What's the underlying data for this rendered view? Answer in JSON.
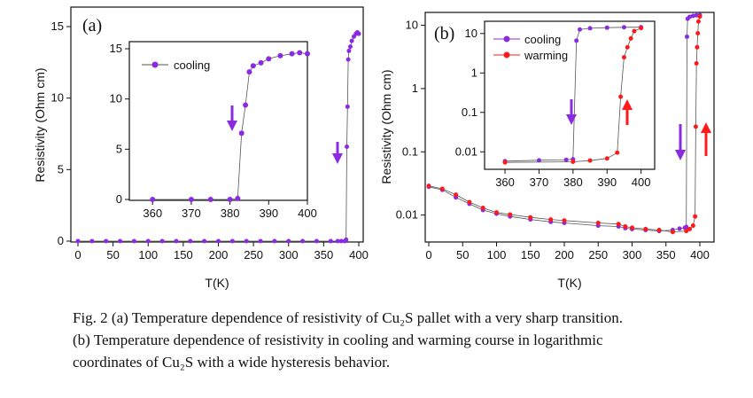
{
  "chart_data": [
    {
      "id": "a",
      "type": "scatter",
      "panel_label": "(a)",
      "xlabel": "T(K)",
      "ylabel": "Resistivity (Ohm cm)",
      "xlim": [
        0,
        400
      ],
      "ylim": [
        0,
        15
      ],
      "yscale": "linear",
      "xticks": [
        0,
        50,
        100,
        150,
        200,
        250,
        300,
        350,
        400
      ],
      "yticks": [
        0,
        5,
        10,
        15
      ],
      "grid": false,
      "series": [
        {
          "name": "cooling",
          "color": "#8a2be2",
          "x": [
            0,
            20,
            40,
            60,
            80,
            100,
            120,
            140,
            160,
            180,
            200,
            220,
            240,
            260,
            280,
            300,
            320,
            340,
            360,
            370,
            375,
            380,
            382,
            383,
            384,
            385,
            386,
            388,
            390,
            393,
            396,
            398,
            400
          ],
          "y": [
            0,
            0,
            0,
            0,
            0,
            0,
            0,
            0,
            0,
            0,
            0,
            0,
            0,
            0,
            0,
            0,
            0,
            0,
            0,
            0,
            0,
            0,
            0.1,
            6.6,
            9.4,
            12.7,
            13.3,
            13.6,
            14.0,
            14.3,
            14.5,
            14.6,
            14.5
          ]
        }
      ],
      "annotations": [
        {
          "type": "arrow",
          "direction": "down",
          "color": "#8a2be2",
          "near": "cooling transition"
        }
      ],
      "inset": {
        "xlim": [
          354,
          400
        ],
        "ylim": [
          0,
          15
        ],
        "xticks": [
          360,
          370,
          380,
          390,
          400
        ],
        "yticks": [
          0,
          5,
          10,
          15
        ],
        "legend": [
          "cooling"
        ],
        "legend_position": "top-left"
      }
    },
    {
      "id": "b",
      "type": "scatter",
      "panel_label": "(b)",
      "xlabel": "T(K)",
      "ylabel": "Resistivity (Ohm cm)",
      "xlim": [
        0,
        400
      ],
      "ylim": [
        0.004,
        15
      ],
      "yscale": "log",
      "xticks": [
        0,
        50,
        100,
        150,
        200,
        250,
        300,
        350,
        400
      ],
      "yticks": [
        0.01,
        0.1,
        1,
        10
      ],
      "ytick_labels": [
        "0.01",
        "0.1",
        "1",
        "10"
      ],
      "grid": false,
      "series": [
        {
          "name": "cooling",
          "color": "#8a2be2",
          "x": [
            0,
            20,
            40,
            60,
            80,
            100,
            120,
            150,
            180,
            200,
            250,
            280,
            290,
            300,
            320,
            340,
            360,
            370,
            378,
            380,
            381,
            382,
            385,
            390,
            395,
            400
          ],
          "y": [
            0.028,
            0.025,
            0.019,
            0.015,
            0.012,
            0.0105,
            0.0095,
            0.0085,
            0.0078,
            0.0075,
            0.0068,
            0.0066,
            0.0062,
            0.006,
            0.0058,
            0.0056,
            0.0058,
            0.0061,
            0.0063,
            0.0065,
            6.6,
            12.7,
            13.6,
            14.1,
            14.4,
            14.5
          ]
        },
        {
          "name": "warming",
          "color": "#ff1a1a",
          "x": [
            0,
            20,
            40,
            60,
            80,
            100,
            120,
            150,
            180,
            200,
            250,
            280,
            290,
            300,
            320,
            340,
            360,
            380,
            385,
            390,
            393,
            394,
            395,
            396,
            397,
            398,
            400
          ],
          "y": [
            0.029,
            0.026,
            0.021,
            0.016,
            0.013,
            0.011,
            0.0102,
            0.0092,
            0.0085,
            0.0082,
            0.0075,
            0.0072,
            0.0066,
            0.0063,
            0.006,
            0.0058,
            0.0054,
            0.0056,
            0.006,
            0.0068,
            0.0095,
            0.25,
            2.5,
            4.5,
            7.5,
            11.5,
            13.8
          ]
        }
      ],
      "annotations": [
        {
          "type": "arrow",
          "direction": "down",
          "color": "#8a2be2",
          "near": "cooling transition"
        },
        {
          "type": "arrow",
          "direction": "up",
          "color": "#ff1a1a",
          "near": "warming transition"
        }
      ],
      "inset": {
        "xlim": [
          354,
          404
        ],
        "ylim": [
          0.004,
          15
        ],
        "yscale": "log",
        "xticks": [
          360,
          370,
          380,
          390,
          400
        ],
        "yticks": [
          0.01,
          0.1,
          1,
          10
        ],
        "ytick_labels": [
          "0.01",
          "0.1",
          "1",
          "10"
        ],
        "legend": [
          "cooling",
          "warming"
        ],
        "legend_position": "top-right"
      }
    }
  ],
  "caption": {
    "line1": "Fig. 2 (a) Temperature dependence of resistivity of Cu₂S pallet with a very sharp transition.",
    "line2": "(b) Temperature dependence of resistivity in cooling and warming course in logarithmic",
    "line3": "coordinates of Cu₂S with a wide hysteresis behavior."
  }
}
